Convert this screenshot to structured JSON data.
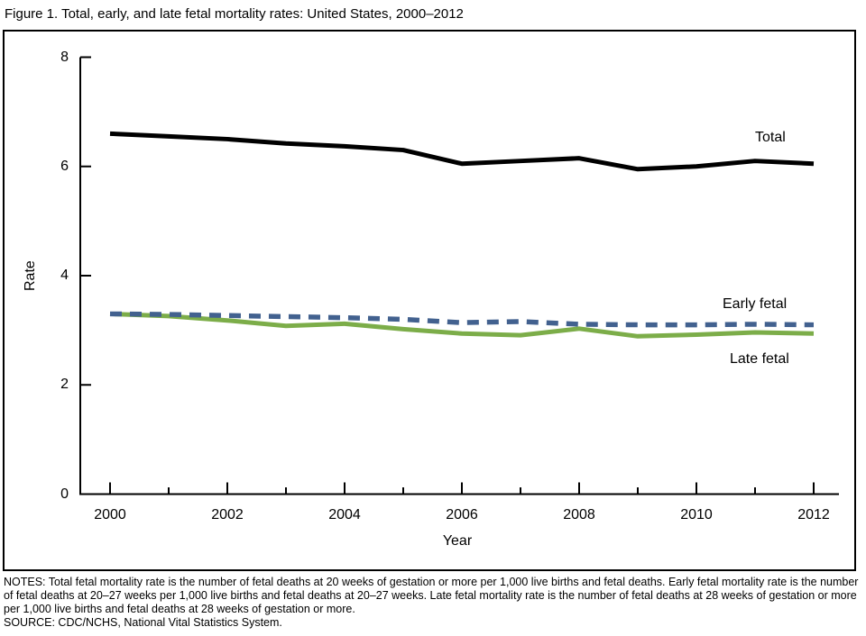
{
  "figure": {
    "title": "Figure 1. Total, early, and late fetal mortality rates: United States, 2000–2012",
    "notes": "NOTES: Total fetal mortality rate is the number of fetal deaths at 20 weeks of gestation or more per 1,000 live births and fetal deaths. Early fetal mortality rate is the number of fetal deaths at 20–27 weeks per 1,000 live births and fetal deaths at 20–27 weeks. Late fetal mortality rate is the number of fetal deaths at 28 weeks of gestation or more per 1,000 live births and fetal deaths at 28 weeks of gestation or more.",
    "source": "SOURCE: CDC/NCHS, National Vital Statistics System."
  },
  "chart_data": {
    "type": "line",
    "title": "Figure 1. Total, early, and late fetal mortality rates: United States, 2000–2012",
    "xlabel": "Year",
    "ylabel": "Rate",
    "x": [
      2000,
      2001,
      2002,
      2003,
      2004,
      2005,
      2006,
      2007,
      2008,
      2009,
      2010,
      2011,
      2012
    ],
    "xticks": [
      2000,
      2002,
      2004,
      2006,
      2008,
      2010,
      2012
    ],
    "yticks": [
      0,
      2,
      4,
      6,
      8
    ],
    "xlim": [
      2000,
      2012
    ],
    "ylim": [
      0,
      8
    ],
    "grid": false,
    "legend_position": "inline-right-of-lines",
    "axis_color": "#000000",
    "series": [
      {
        "name": "Total",
        "style": "solid",
        "color": "#000000",
        "values": [
          6.6,
          6.55,
          6.5,
          6.42,
          6.37,
          6.3,
          6.05,
          6.1,
          6.15,
          5.95,
          6.0,
          6.1,
          6.05
        ]
      },
      {
        "name": "Early fetal",
        "style": "dashed",
        "color": "#42618F",
        "values": [
          3.3,
          3.29,
          3.27,
          3.25,
          3.23,
          3.2,
          3.14,
          3.16,
          3.11,
          3.1,
          3.1,
          3.11,
          3.1
        ]
      },
      {
        "name": "Late fetal",
        "style": "solid",
        "color": "#7CAD49",
        "values": [
          3.3,
          3.26,
          3.18,
          3.08,
          3.12,
          3.02,
          2.94,
          2.91,
          3.03,
          2.89,
          2.92,
          2.96,
          2.94
        ]
      }
    ]
  }
}
